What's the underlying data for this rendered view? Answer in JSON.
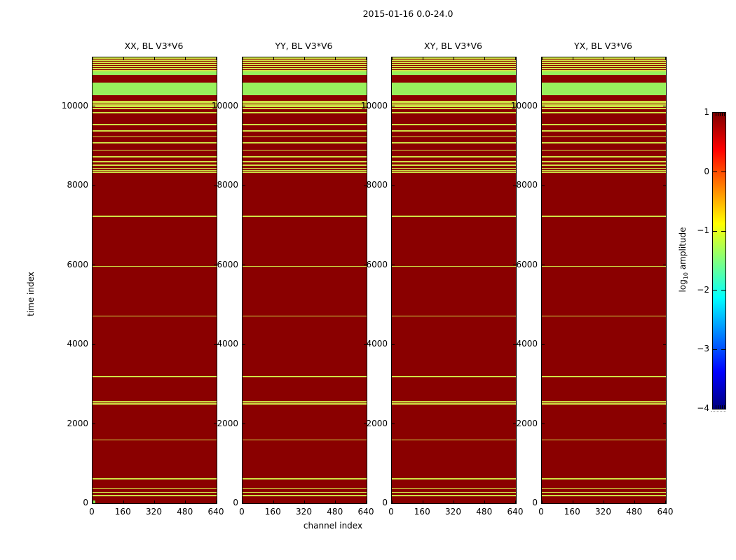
{
  "figure": {
    "title": "2015-01-16 0.0-24.0",
    "xlabel": "channel index",
    "ylabel": "time index"
  },
  "chart_data": {
    "type": "heatmap",
    "title": "2015-01-16 0.0-24.0",
    "xlabel": "channel index",
    "ylabel": "time index",
    "colormap": "jet",
    "xlim": [
      0,
      640
    ],
    "ylim": [
      0,
      11234
    ],
    "x_ticks": [
      0,
      160,
      320,
      480,
      640
    ],
    "x_tick_labels": [
      "0",
      "160",
      "320",
      "480",
      "640"
    ],
    "y_ticks": [
      0,
      2000,
      4000,
      6000,
      8000,
      10000
    ],
    "y_tick_labels": [
      "0",
      "2000",
      "4000",
      "6000",
      "8000",
      "10000"
    ],
    "panels": [
      {
        "title": "XX, BL V3*V6"
      },
      {
        "title": "YY, BL V3*V6"
      },
      {
        "title": "XY, BL V3*V6"
      },
      {
        "title": "YX, BL V3*V6"
      }
    ],
    "colors": {
      "background_value": "#8a0000",
      "stripe": "#cfe145",
      "band": "#98f05c",
      "marker": "#86ea52"
    },
    "flagged_rows": [
      {
        "t": 11215,
        "h": 2,
        "c": "stripe"
      },
      {
        "t": 11165,
        "h": 2,
        "c": "stripe"
      },
      {
        "t": 11115,
        "h": 2,
        "c": "stripe"
      },
      {
        "t": 11062,
        "h": 2,
        "c": "stripe"
      },
      {
        "t": 11010,
        "h": 2,
        "c": "stripe"
      },
      {
        "t": 10958,
        "h": 2,
        "c": "stripe"
      },
      {
        "t": 10906,
        "h": 2,
        "c": "stripe"
      },
      {
        "t": 10833,
        "h": 5,
        "c": "band"
      },
      {
        "t": 10445,
        "h": 18,
        "c": "band"
      },
      {
        "t": 10130,
        "h": 2,
        "c": "stripe"
      },
      {
        "t": 10085,
        "h": 2,
        "c": "stripe"
      },
      {
        "t": 10040,
        "h": 2,
        "c": "stripe"
      },
      {
        "t": 9995,
        "h": 2,
        "c": "stripe"
      },
      {
        "t": 9950,
        "h": 2,
        "c": "stripe"
      },
      {
        "t": 9840,
        "h": 1.5,
        "c": "stripe"
      },
      {
        "t": 9540,
        "h": 1.5,
        "c": "stripe"
      },
      {
        "t": 9380,
        "h": 1.5,
        "c": "stripe"
      },
      {
        "t": 9230,
        "h": 1.5,
        "c": "stripe"
      },
      {
        "t": 9080,
        "h": 1.5,
        "c": "stripe"
      },
      {
        "t": 8900,
        "h": 1.5,
        "c": "stripe"
      },
      {
        "t": 8730,
        "h": 1.5,
        "c": "stripe"
      },
      {
        "t": 8610,
        "h": 1.5,
        "c": "stripe"
      },
      {
        "t": 8520,
        "h": 1.5,
        "c": "stripe"
      },
      {
        "t": 8440,
        "h": 1.5,
        "c": "stripe"
      },
      {
        "t": 8390,
        "h": 1.5,
        "c": "stripe"
      },
      {
        "t": 8340,
        "h": 1.5,
        "c": "stripe"
      },
      {
        "t": 7230,
        "h": 1.5,
        "c": "stripe"
      },
      {
        "t": 5970,
        "h": 1.5,
        "c": "stripe"
      },
      {
        "t": 4720,
        "h": 1.5,
        "c": "stripe"
      },
      {
        "t": 3190,
        "h": 1.5,
        "c": "stripe"
      },
      {
        "t": 2560,
        "h": 1.5,
        "c": "stripe"
      },
      {
        "t": 2505,
        "h": 1.5,
        "c": "stripe"
      },
      {
        "t": 1600,
        "h": 1.5,
        "c": "stripe"
      },
      {
        "t": 620,
        "h": 1.5,
        "c": "stripe"
      },
      {
        "t": 375,
        "h": 1.5,
        "c": "stripe"
      },
      {
        "t": 270,
        "h": 1.5,
        "c": "stripe"
      },
      {
        "t": 190,
        "h": 1.5,
        "c": "stripe"
      }
    ],
    "corner_marker": {
      "panel": 0,
      "time_span": [
        0,
        70
      ],
      "channel_span": [
        2,
        16
      ],
      "c": "marker"
    },
    "colorbar": {
      "vmin": -4,
      "vmax": 1,
      "tick_values": [
        1,
        0,
        -1,
        -2,
        -3,
        -4
      ],
      "tick_labels": [
        "1",
        "0",
        "−1",
        "−2",
        "−3",
        "−4"
      ],
      "label_prefix": "log",
      "label_sub": "10",
      "label_suffix": " amplitude",
      "gradient_top_to_bottom": [
        "#7f0000",
        "#ff0000",
        "#ffff00",
        "#00ffff",
        "#0000ff",
        "#00007f"
      ]
    }
  }
}
